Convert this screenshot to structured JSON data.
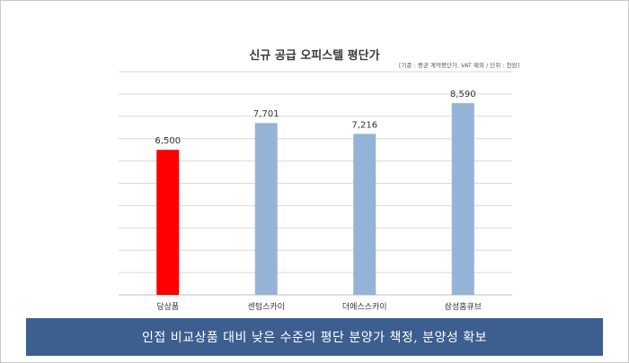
{
  "chart_data": {
    "type": "bar",
    "title": "신규 공급 오피스텔 평단가",
    "note": "[기준 : 평균 계약평단가, VAT 제외 / 단위 : 천원]",
    "categories": [
      "당상품",
      "센텀스카이",
      "더에스스카이",
      "삼성홈큐브"
    ],
    "values": [
      6500,
      7701,
      7216,
      8590
    ],
    "value_labels": [
      "6,500",
      "7,701",
      "7,216",
      "8,590"
    ],
    "bar_colors": [
      "#ff0000",
      "#95b3d7",
      "#95b3d7",
      "#95b3d7"
    ],
    "ylim": [
      0,
      10000
    ],
    "grid": true,
    "legend": "none"
  },
  "banner": {
    "text": "인접 비교상품 대비 낮은 수준의 평단 분양가 책정, 분양성 확보",
    "background": "#3c5f8f"
  }
}
